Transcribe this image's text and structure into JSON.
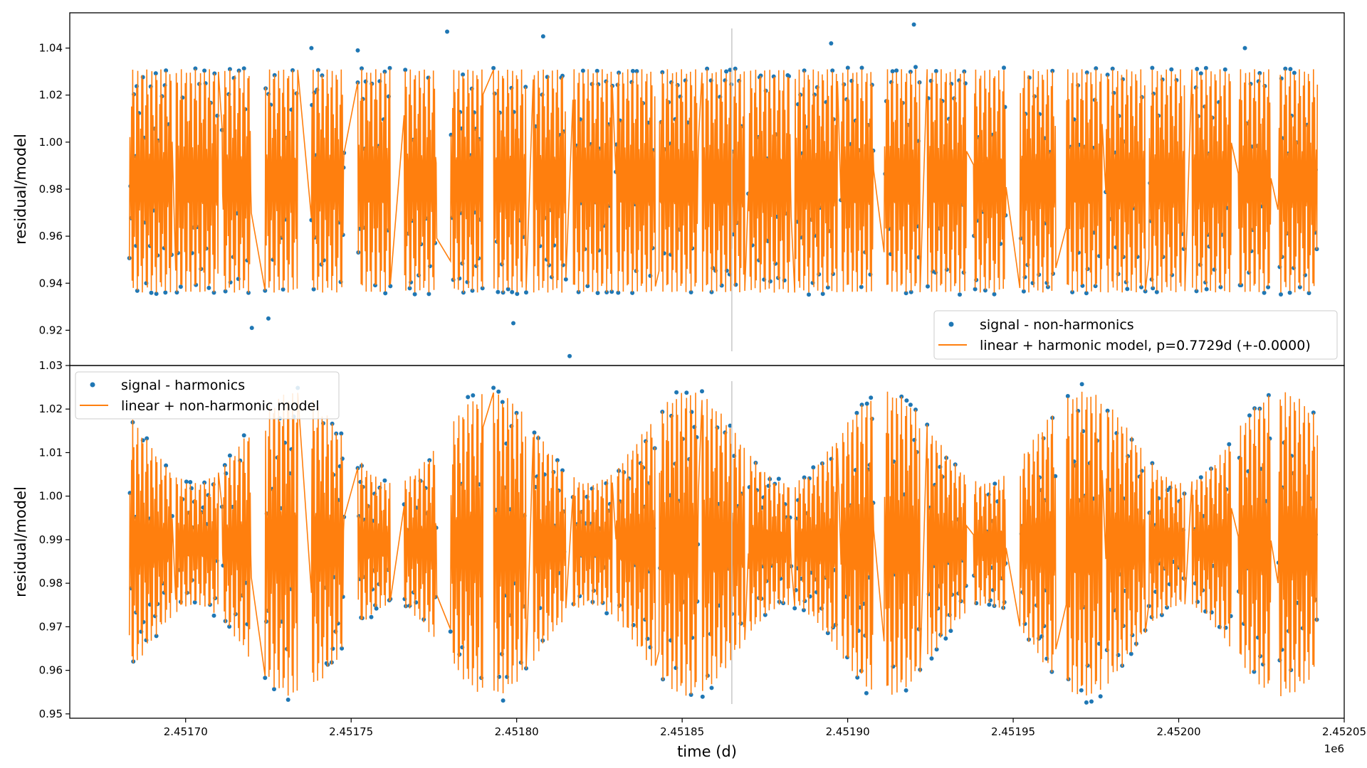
{
  "chart_data": [
    {
      "type": "scatter",
      "panel": "top",
      "ylabel": "residual/model",
      "xlabel": "",
      "ylim": [
        0.905,
        1.055
      ],
      "xlim": [
        2451665,
        2452050
      ],
      "y_ticks": [
        0.92,
        0.94,
        0.96,
        0.98,
        1.0,
        1.02,
        1.04
      ],
      "y_tick_labels": [
        "0.92",
        "0.94",
        "0.96",
        "0.98",
        "1.00",
        "1.02",
        "1.04"
      ],
      "vertical_line_x": 2451865,
      "legend_position": "lower-right",
      "series": [
        {
          "name": "signal - non-harmonics",
          "kind": "scatter",
          "color": "#1f77b4",
          "description_values": {
            "segments_x": [
              [
                2451683,
                2451696
              ],
              [
                2451697,
                2451710
              ],
              [
                2451711,
                2451720
              ],
              [
                2451724,
                2451734
              ],
              [
                2451738,
                2451748
              ],
              [
                2451752,
                2451762
              ],
              [
                2451766,
                2451776
              ],
              [
                2451780,
                2451790
              ],
              [
                2451793,
                2451803
              ],
              [
                2451805,
                2451815
              ],
              [
                2451817,
                2451829
              ],
              [
                2451830,
                2451842
              ],
              [
                2451843,
                2451855
              ],
              [
                2451856,
                2451869
              ],
              [
                2451870,
                2451883
              ],
              [
                2451884,
                2451897
              ],
              [
                2451898,
                2451908
              ],
              [
                2451911,
                2451922
              ],
              [
                2451924,
                2451936
              ],
              [
                2451938,
                2451948
              ],
              [
                2451952,
                2451963
              ],
              [
                2451966,
                2451977
              ],
              [
                2451978,
                2451990
              ],
              [
                2451991,
                2452002
              ],
              [
                2452004,
                2452016
              ],
              [
                2452018,
                2452028
              ],
              [
                2452030,
                2452042
              ]
            ],
            "y_range": [
              0.936,
              1.033
            ],
            "outliers": [
              [
                2451779,
                1.047
              ],
              [
                2451816,
                0.909
              ],
              [
                2451920,
                1.05
              ],
              [
                2451895,
                1.042
              ],
              [
                2451808,
                1.045
              ],
              [
                2451738,
                1.04
              ],
              [
                2451752,
                1.039
              ],
              [
                2451720,
                0.921
              ],
              [
                2451725,
                0.925
              ],
              [
                2451799,
                0.923
              ],
              [
                2452020,
                1.04
              ]
            ]
          }
        },
        {
          "name": "linear + harmonic model, p=0.7729d (+-0.0000)",
          "kind": "line",
          "color": "#ff7f0e",
          "period_d": 0.7729,
          "y_range": [
            0.936,
            1.031
          ]
        }
      ]
    },
    {
      "type": "scatter",
      "panel": "bottom",
      "ylabel": "residual/model",
      "xlabel": "time (d)",
      "x_offset_label": "1e6",
      "ylim": [
        0.949,
        1.03
      ],
      "xlim": [
        2451665,
        2452050
      ],
      "y_ticks": [
        0.95,
        0.96,
        0.97,
        0.98,
        0.99,
        1.0,
        1.01,
        1.02,
        1.03
      ],
      "y_tick_labels": [
        "0.95",
        "0.96",
        "0.97",
        "0.98",
        "0.99",
        "1.00",
        "1.01",
        "1.02",
        "1.03"
      ],
      "x_ticks": [
        2451700,
        2451750,
        2451800,
        2451850,
        2451900,
        2451950,
        2452000,
        2452050
      ],
      "x_tick_labels": [
        "2.45170",
        "2.45175",
        "2.45180",
        "2.45185",
        "2.45190",
        "2.45195",
        "2.45200",
        "2.45205"
      ],
      "vertical_line_x": 2451865,
      "legend_position": "top-left",
      "series": [
        {
          "name": "signal - harmonics",
          "kind": "scatter",
          "color": "#1f77b4",
          "y_range": [
            0.953,
            1.025
          ]
        },
        {
          "name": "linear + non-harmonic model",
          "kind": "line",
          "color": "#ff7f0e",
          "y_range": [
            0.954,
            1.024
          ]
        }
      ]
    }
  ]
}
